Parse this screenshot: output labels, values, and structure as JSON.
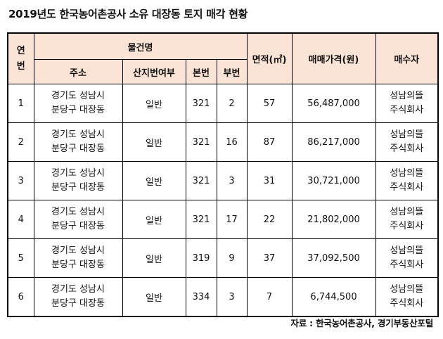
{
  "title": "2019년도 한국농어촌공사 소유 대장동 토지 매각 현황",
  "headers": {
    "no": "연번",
    "property": "물건명",
    "area": "면적(㎡)",
    "price": "매매가격(원)",
    "buyer": "매수자",
    "address": "주소",
    "mountain": "산지번여부",
    "main_no": "본번",
    "sub_no": "부번"
  },
  "rows": [
    {
      "no": "1",
      "address_line1": "경기도 성남시",
      "address_line2": "분당구 대장동",
      "mountain": "일반",
      "main_no": "321",
      "sub_no": "2",
      "area": "57",
      "price": "56,487,000",
      "buyer_line1": "성남의뜰",
      "buyer_line2": "주식회사"
    },
    {
      "no": "2",
      "address_line1": "경기도 성남시",
      "address_line2": "분당구 대장동",
      "mountain": "일반",
      "main_no": "321",
      "sub_no": "16",
      "area": "87",
      "price": "86,217,000",
      "buyer_line1": "성남의뜰",
      "buyer_line2": "주식회사"
    },
    {
      "no": "3",
      "address_line1": "경기도 성남시",
      "address_line2": "분당구 대장동",
      "mountain": "일반",
      "main_no": "321",
      "sub_no": "3",
      "area": "31",
      "price": "30,721,000",
      "buyer_line1": "성남의뜰",
      "buyer_line2": "주식회사"
    },
    {
      "no": "4",
      "address_line1": "경기도 성남시",
      "address_line2": "분당구 대장동",
      "mountain": "일반",
      "main_no": "321",
      "sub_no": "17",
      "area": "22",
      "price": "21,802,000",
      "buyer_line1": "성남의뜰",
      "buyer_line2": "주식회사"
    },
    {
      "no": "5",
      "address_line1": "경기도 성남시",
      "address_line2": "분당구 대장동",
      "mountain": "일반",
      "main_no": "319",
      "sub_no": "9",
      "area": "37",
      "price": "37,092,500",
      "buyer_line1": "성남의뜰",
      "buyer_line2": "주식회사"
    },
    {
      "no": "6",
      "address_line1": "경기도 성남시",
      "address_line2": "분당구 대장동",
      "mountain": "일반",
      "main_no": "334",
      "sub_no": "3",
      "area": "7",
      "price": "6,744,500",
      "buyer_line1": "성남의뜰",
      "buyer_line2": "주식회사"
    }
  ],
  "source": "자료 : 한국농어촌공사, 경기부동산포털",
  "colors": {
    "header_bg": "#fbe4d5",
    "border": "#000000"
  }
}
